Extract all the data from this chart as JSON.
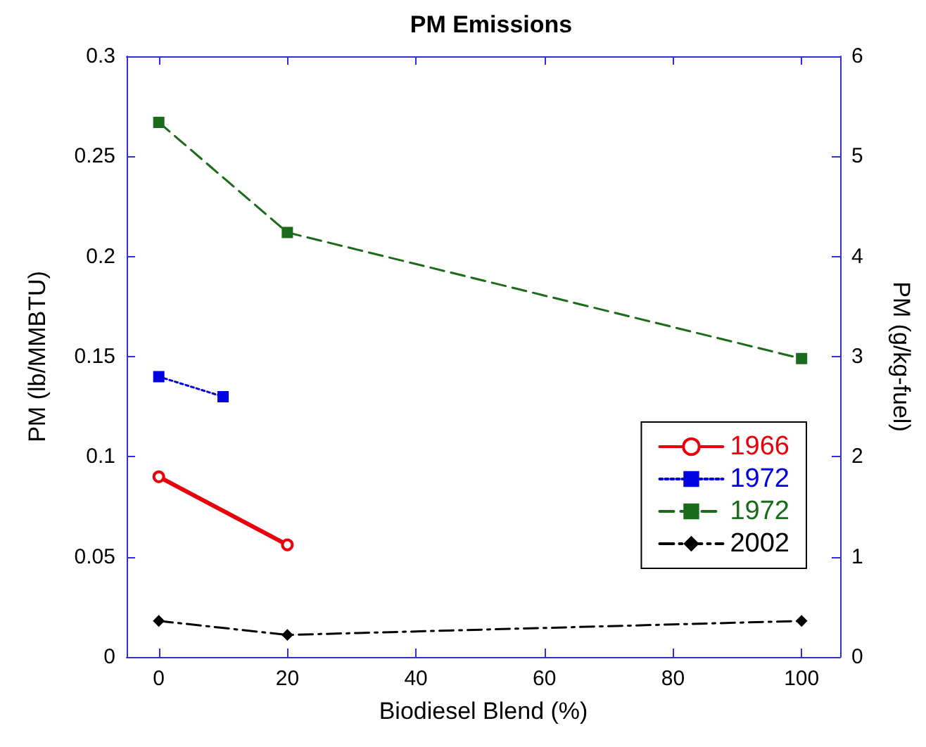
{
  "chart_data": {
    "type": "line",
    "title": "PM Emissions",
    "xlabel": "Biodiesel Blend (%)",
    "ylabel": "PM (lb/MMBTU)",
    "y2label": "PM (g/kg-fuel)",
    "xlim": [
      -5,
      106
    ],
    "xticks": [
      0,
      20,
      40,
      60,
      80,
      100
    ],
    "ylim": [
      0,
      0.3
    ],
    "yticks": [
      0,
      0.05,
      0.1,
      0.15,
      0.2,
      0.25,
      0.3
    ],
    "y2lim": [
      0,
      6
    ],
    "y2ticks": [
      0,
      1,
      2,
      3,
      4,
      5,
      6
    ],
    "grid": false,
    "legend": "right",
    "series": [
      {
        "name": "1966",
        "color": "#e8000b",
        "x": [
          0,
          20
        ],
        "values": [
          0.09,
          0.056
        ],
        "marker": "circle",
        "line_style": "solid"
      },
      {
        "name": "1972",
        "color": "#0000e0",
        "x": [
          0,
          10
        ],
        "values": [
          0.14,
          0.13
        ],
        "marker": "square",
        "line_style": "dotted"
      },
      {
        "name": "1972",
        "color": "#1a6b1a",
        "x": [
          0,
          20,
          100
        ],
        "values": [
          0.267,
          0.212,
          0.149
        ],
        "marker": "square",
        "line_style": "dashed"
      },
      {
        "name": "2002",
        "color": "#000000",
        "x": [
          0,
          20,
          100
        ],
        "values": [
          0.018,
          0.011,
          0.018
        ],
        "marker": "diamond",
        "line_style": "dashdot"
      }
    ]
  }
}
